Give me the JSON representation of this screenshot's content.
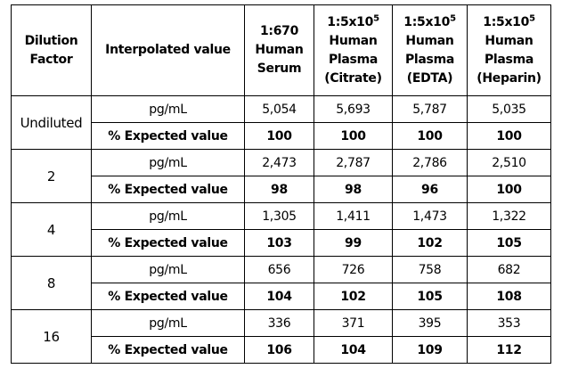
{
  "table": {
    "header": [
      {
        "lines": [
          "Dilution",
          "Factor"
        ]
      },
      {
        "lines": [
          "Interpolated value"
        ]
      },
      {
        "lines": [
          "1:670",
          "Human",
          "Serum"
        ]
      },
      {
        "lines": [
          {
            "base": "1:5x10",
            "sup": "5"
          },
          "Human",
          "Plasma",
          "(Citrate)"
        ]
      },
      {
        "lines": [
          {
            "base": "1:5x10",
            "sup": "5"
          },
          "Human",
          "Plasma",
          "(EDTA)"
        ]
      },
      {
        "lines": [
          {
            "base": "1:5x10",
            "sup": "5"
          },
          "Human",
          "Plasma",
          "(Heparin)"
        ]
      }
    ],
    "groups": [
      {
        "dilution": "Undiluted",
        "rows": [
          {
            "label": "pg/mL",
            "values": [
              "5,054",
              "5,693",
              "5,787",
              "5,035"
            ]
          },
          {
            "label": "% Expected value",
            "values": [
              100,
              100,
              100,
              100
            ]
          }
        ]
      },
      {
        "dilution": 2,
        "rows": [
          {
            "label": "pg/mL",
            "values": [
              "2,473",
              "2,787",
              "2,786",
              "2,510"
            ]
          },
          {
            "label": "% Expected value",
            "values": [
              98,
              98,
              96,
              100
            ]
          }
        ]
      },
      {
        "dilution": 4,
        "rows": [
          {
            "label": "pg/mL",
            "values": [
              "1,305",
              "1,411",
              "1,473",
              "1,322"
            ]
          },
          {
            "label": "% Expected value",
            "values": [
              103,
              99,
              102,
              105
            ]
          }
        ]
      },
      {
        "dilution": 8,
        "rows": [
          {
            "label": "pg/mL",
            "values": [
              656,
              726,
              758,
              682
            ]
          },
          {
            "label": "% Expected value",
            "values": [
              104,
              102,
              105,
              108
            ]
          }
        ]
      },
      {
        "dilution": 16,
        "rows": [
          {
            "label": "pg/mL",
            "values": [
              336,
              371,
              395,
              353
            ]
          },
          {
            "label": "% Expected value",
            "values": [
              106,
              104,
              109,
              112
            ]
          }
        ]
      }
    ]
  }
}
